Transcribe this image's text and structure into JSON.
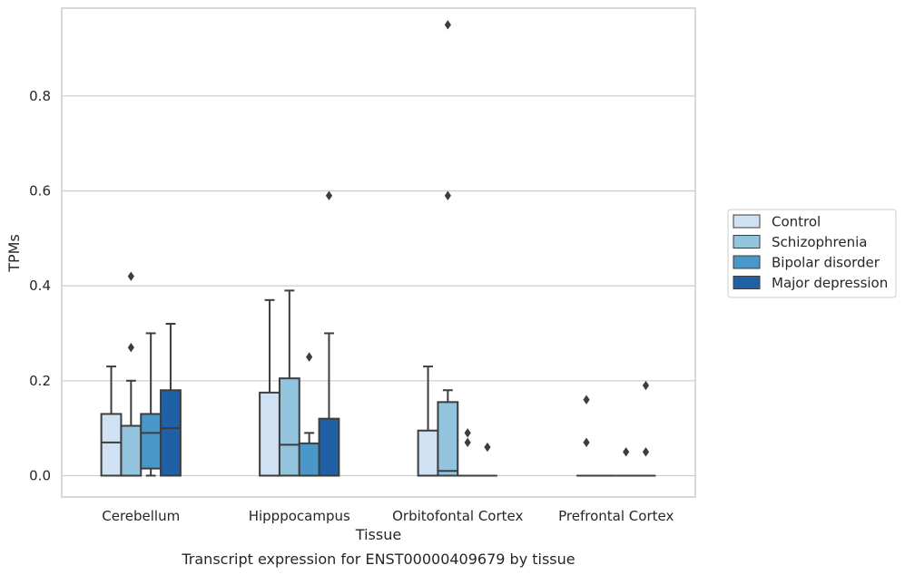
{
  "chart_data": {
    "type": "box",
    "title": "",
    "caption": "Transcript expression for ENST00000409679 by tissue",
    "xlabel": "Tissue",
    "ylabel": "TPMs",
    "ylim": [
      -0.045,
      0.985
    ],
    "yticks": [
      0.0,
      0.2,
      0.4,
      0.6,
      0.8
    ],
    "ytick_labels": [
      "0.0",
      "0.2",
      "0.4",
      "0.6",
      "0.8"
    ],
    "grid": "horizontal",
    "legend_position": "right",
    "categories": [
      "Cerebellum",
      "Hipppocampus",
      "Orbitofontal Cortex",
      "Prefrontal Cortex"
    ],
    "series": [
      {
        "name": "Control",
        "color": "#cfe1f2",
        "boxes": [
          {
            "min": 0.0,
            "q1": 0.0,
            "median": 0.07,
            "q3": 0.13,
            "max": 0.23,
            "outliers": []
          },
          {
            "min": 0.0,
            "q1": 0.0,
            "median": 0.0,
            "q3": 0.175,
            "max": 0.37,
            "outliers": []
          },
          {
            "min": 0.0,
            "q1": 0.0,
            "median": 0.0,
            "q3": 0.095,
            "max": 0.23,
            "outliers": []
          },
          {
            "min": 0.0,
            "q1": 0.0,
            "median": 0.0,
            "q3": 0.0,
            "max": 0.0,
            "outliers": [
              0.16,
              0.07
            ]
          }
        ]
      },
      {
        "name": "Schizophrenia",
        "color": "#93c4de",
        "boxes": [
          {
            "min": 0.0,
            "q1": 0.0,
            "median": 0.0,
            "q3": 0.105,
            "max": 0.2,
            "outliers": [
              0.42,
              0.27
            ]
          },
          {
            "min": 0.0,
            "q1": 0.0,
            "median": 0.065,
            "q3": 0.205,
            "max": 0.39,
            "outliers": []
          },
          {
            "min": 0.0,
            "q1": 0.0,
            "median": 0.01,
            "q3": 0.155,
            "max": 0.18,
            "outliers": [
              0.95,
              0.59
            ]
          },
          {
            "min": 0.0,
            "q1": 0.0,
            "median": 0.0,
            "q3": 0.0,
            "max": 0.0,
            "outliers": []
          }
        ]
      },
      {
        "name": "Bipolar disorder",
        "color": "#4a98c9",
        "boxes": [
          {
            "min": 0.0,
            "q1": 0.015,
            "median": 0.09,
            "q3": 0.13,
            "max": 0.3,
            "outliers": []
          },
          {
            "min": 0.0,
            "q1": 0.0,
            "median": 0.0,
            "q3": 0.068,
            "max": 0.09,
            "outliers": [
              0.25
            ]
          },
          {
            "min": 0.0,
            "q1": 0.0,
            "median": 0.0,
            "q3": 0.0,
            "max": 0.0,
            "outliers": [
              0.09,
              0.07
            ]
          },
          {
            "min": 0.0,
            "q1": 0.0,
            "median": 0.0,
            "q3": 0.0,
            "max": 0.0,
            "outliers": [
              0.05
            ]
          }
        ]
      },
      {
        "name": "Major depression",
        "color": "#2060a7",
        "boxes": [
          {
            "min": 0.0,
            "q1": 0.0,
            "median": 0.1,
            "q3": 0.18,
            "max": 0.32,
            "outliers": []
          },
          {
            "min": 0.0,
            "q1": 0.0,
            "median": 0.0,
            "q3": 0.12,
            "max": 0.3,
            "outliers": [
              0.59
            ]
          },
          {
            "min": 0.0,
            "q1": 0.0,
            "median": 0.0,
            "q3": 0.0,
            "max": 0.0,
            "outliers": [
              0.06
            ]
          },
          {
            "min": 0.0,
            "q1": 0.0,
            "median": 0.0,
            "q3": 0.0,
            "max": 0.0,
            "outliers": [
              0.19,
              0.05
            ]
          }
        ]
      }
    ]
  }
}
